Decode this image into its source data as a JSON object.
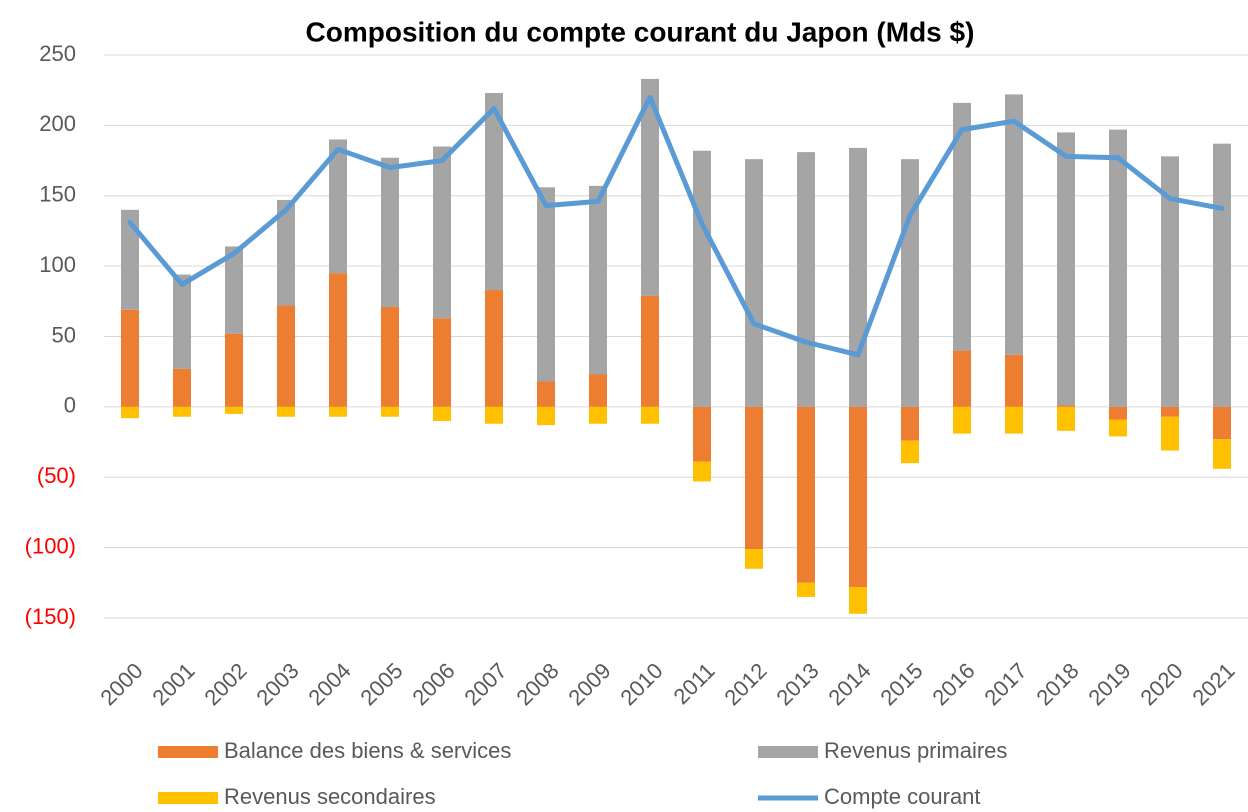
{
  "chart_data": {
    "type": "bar",
    "title": "Composition du compte courant du Japon (Mds $)",
    "categories": [
      "2000",
      "2001",
      "2002",
      "2003",
      "2004",
      "2005",
      "2006",
      "2007",
      "2008",
      "2009",
      "2010",
      "2011",
      "2012",
      "2013",
      "2014",
      "2015",
      "2016",
      "2017",
      "2018",
      "2019",
      "2020",
      "2021"
    ],
    "series": [
      {
        "name": "Balance des biens & services",
        "color": "#ed7d31",
        "type": "bar",
        "values": [
          69,
          27,
          52,
          72,
          95,
          71,
          63,
          83,
          18,
          23,
          79,
          -39,
          -101,
          -125,
          -128,
          -24,
          40,
          37,
          1,
          -9,
          -7,
          -23
        ]
      },
      {
        "name": "Revenus primaires",
        "color": "#a5a5a5",
        "type": "bar",
        "values": [
          71,
          67,
          62,
          75,
          95,
          106,
          122,
          140,
          138,
          134,
          154,
          182,
          176,
          181,
          184,
          176,
          176,
          185,
          194,
          197,
          178,
          187
        ]
      },
      {
        "name": "Revenus secondaires",
        "color": "#ffc000",
        "type": "bar",
        "values": [
          -8,
          -7,
          -5,
          -7,
          -7,
          -7,
          -10,
          -12,
          -13,
          -12,
          -12,
          -14,
          -14,
          -10,
          -19,
          -16,
          -19,
          -19,
          -17,
          -12,
          -24,
          -21
        ]
      },
      {
        "name": "Compte courant",
        "color": "#5b9bd5",
        "type": "line",
        "values": [
          131,
          87,
          109,
          140,
          183,
          170,
          175,
          212,
          143,
          146,
          220,
          130,
          59,
          46,
          37,
          136,
          197,
          203,
          178,
          177,
          148,
          141
        ]
      }
    ],
    "ylim": [
      -150,
      250
    ],
    "yticks": [
      {
        "value": -150,
        "label": "(150)"
      },
      {
        "value": -100,
        "label": "(100)"
      },
      {
        "value": -50,
        "label": "(50)"
      },
      0,
      50,
      100,
      150,
      200,
      250
    ],
    "negative_tick_color": "#ff0000",
    "grid": true
  }
}
